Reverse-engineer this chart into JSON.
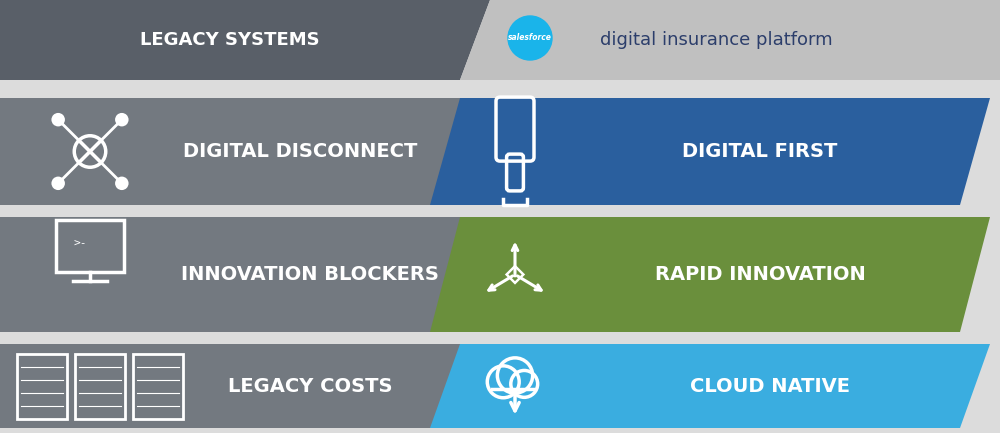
{
  "bg_color": "#dcdcdc",
  "header_left_color": "#595f68",
  "header_right_color": "#c0c0c0",
  "row_left_color": "#737980",
  "row1_right_color": "#2a5f9e",
  "row2_right_color": "#6a8f3c",
  "row3_right_color": "#3aade0",
  "white": "#ffffff",
  "dark_text": "#2c3e6b",
  "header_left_text": "LEGACY SYSTEMS",
  "header_right_text": "digital insurance platform",
  "row1_left_text": "DIGITAL DISCONNECT",
  "row1_right_text": "DIGITAL FIRST",
  "row2_left_text": "INNOVATION BLOCKERS",
  "row2_right_text": "RAPID INNOVATION",
  "row3_left_text": "LEGACY COSTS",
  "row3_right_text": "CLOUD NATIVE",
  "salesforce_color": "#1ab4ea"
}
